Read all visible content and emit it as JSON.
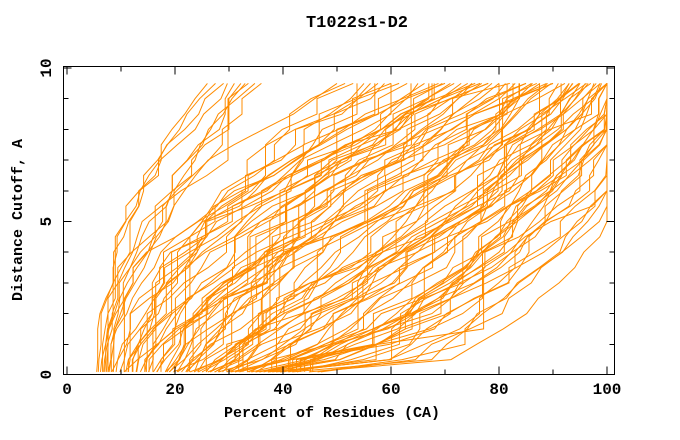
{
  "chart_data": {
    "type": "line",
    "title": "T1022s1-D2",
    "xlabel": "Percent of Residues (CA)",
    "ylabel": "Distance Cutoff, A",
    "xlim": [
      0,
      100
    ],
    "ylim": [
      0,
      10
    ],
    "x_major_ticks": [
      0,
      20,
      40,
      60,
      80,
      100
    ],
    "x_minor_ticks": [
      10,
      30,
      50,
      70,
      90
    ],
    "y_major_ticks": [
      0,
      5,
      10
    ],
    "y_minor_ticks": [
      1,
      2,
      3,
      4,
      6,
      7,
      8,
      9
    ],
    "grid": false,
    "legend": "none",
    "line_color": "#ff8c00",
    "axis_color": "#000000",
    "background_color": "#ffffff",
    "tick_style": "inward-all-four-sides",
    "y_tick_labels_rotated": true,
    "cutoff_levels": [
      0.1,
      0.5,
      1,
      1.5,
      2,
      2.5,
      3,
      3.5,
      4,
      4.5,
      5,
      5.5,
      6,
      6.5,
      7,
      7.5,
      8,
      8.5,
      9,
      9.5
    ],
    "curves_format": [
      "start_percent_at_min_cutoff",
      "end_percent_at_max_cutoff",
      "shape_exponent"
    ],
    "curves": [
      [
        5.5,
        26,
        1.79
      ],
      [
        6.2,
        29,
        1.69
      ],
      [
        7,
        31,
        1.75
      ],
      [
        7.8,
        33,
        1.66
      ],
      [
        8.6,
        36,
        1.73
      ],
      [
        5.8,
        27.5,
        1.78
      ],
      [
        7.3,
        32.2,
        1.71
      ],
      [
        8.2,
        34.8,
        1.8
      ],
      [
        6.6,
        29.7,
        1.68
      ],
      [
        7.6,
        33.6,
        1.76
      ],
      [
        6.8,
        50,
        1.66
      ],
      [
        8.3,
        53,
        1.56
      ],
      [
        9.8,
        55,
        1.62
      ],
      [
        11.3,
        57,
        1.53
      ],
      [
        12.8,
        60,
        1.6
      ],
      [
        7.6,
        51.5,
        1.65
      ],
      [
        10.6,
        56.2,
        1.58
      ],
      [
        12.2,
        58.8,
        1.67
      ],
      [
        9.1,
        53.7,
        1.55
      ],
      [
        10.9,
        57.6,
        1.63
      ],
      [
        10.6,
        60,
        1.52
      ],
      [
        12.1,
        63,
        1.42
      ],
      [
        13.6,
        65,
        1.48
      ],
      [
        15.1,
        67,
        1.39
      ],
      [
        16.6,
        70,
        1.46
      ],
      [
        11.4,
        61.5,
        1.51
      ],
      [
        14.4,
        66.2,
        1.44
      ],
      [
        16,
        68.8,
        1.53
      ],
      [
        12.9,
        63.7,
        1.41
      ],
      [
        14.7,
        67.6,
        1.49
      ],
      [
        14.4,
        68,
        1.39
      ],
      [
        15.9,
        71,
        1.29
      ],
      [
        17.4,
        73,
        1.35
      ],
      [
        18.9,
        75,
        1.26
      ],
      [
        20.4,
        78,
        1.33
      ],
      [
        15.2,
        69.5,
        1.38
      ],
      [
        18.2,
        74.2,
        1.31
      ],
      [
        19.8,
        76.8,
        1.4
      ],
      [
        16.7,
        71.7,
        1.28
      ],
      [
        18.5,
        75.6,
        1.36
      ],
      [
        18.2,
        75,
        1.25
      ],
      [
        19.7,
        78,
        1.15
      ],
      [
        21.2,
        80,
        1.21
      ],
      [
        22.7,
        82,
        1.12
      ],
      [
        24.2,
        85,
        1.19
      ],
      [
        19,
        76.5,
        1.24
      ],
      [
        22,
        81.2,
        1.17
      ],
      [
        23.6,
        83.8,
        1.26
      ],
      [
        20.5,
        78.7,
        1.14
      ],
      [
        22.3,
        82.6,
        1.22
      ],
      [
        22,
        80,
        1.12
      ],
      [
        23.5,
        83,
        1.02
      ],
      [
        25,
        85,
        1.08
      ],
      [
        26.5,
        87,
        0.99
      ],
      [
        28,
        90,
        1.06
      ],
      [
        22.8,
        81.5,
        1.11
      ],
      [
        25.8,
        86.2,
        1.04
      ],
      [
        27.4,
        88.8,
        1.13
      ],
      [
        24.3,
        83.7,
        1.01
      ],
      [
        26.1,
        87.6,
        1.09
      ],
      [
        25.8,
        86,
        0.98
      ],
      [
        27.3,
        89,
        0.88
      ],
      [
        28.8,
        91,
        0.94
      ],
      [
        30.3,
        93,
        0.85
      ],
      [
        31.8,
        96,
        0.92
      ],
      [
        26.6,
        87.5,
        0.97
      ],
      [
        29.6,
        92.2,
        0.9
      ],
      [
        31.2,
        94.8,
        0.99
      ],
      [
        28.1,
        89.7,
        0.87
      ],
      [
        29.9,
        93.6,
        0.95
      ],
      [
        29.6,
        90,
        0.85
      ],
      [
        31.1,
        93,
        0.75
      ],
      [
        32.6,
        95,
        0.81
      ],
      [
        34.1,
        97,
        0.72
      ],
      [
        35.6,
        100,
        0.79
      ],
      [
        30.4,
        91.5,
        0.84
      ],
      [
        33.4,
        96.2,
        0.77
      ],
      [
        35,
        98.8,
        0.86
      ],
      [
        31.9,
        93.7,
        0.74
      ],
      [
        33.7,
        97.6,
        0.82
      ],
      [
        33.4,
        95,
        0.71
      ],
      [
        34.9,
        98,
        0.61
      ],
      [
        36.4,
        100,
        0.67
      ],
      [
        37.9,
        102,
        0.58
      ],
      [
        39.4,
        105,
        0.65
      ],
      [
        34.2,
        96.5,
        0.7
      ],
      [
        37.2,
        101.2,
        0.63
      ],
      [
        38.8,
        103.8,
        0.72
      ],
      [
        35.7,
        98.7,
        0.6
      ],
      [
        37.5,
        102.6,
        0.68
      ],
      [
        37.2,
        99,
        0.58
      ],
      [
        38.7,
        102,
        0.48
      ],
      [
        40.2,
        104,
        0.54
      ],
      [
        41.7,
        106,
        0.45
      ],
      [
        43.2,
        109,
        0.52
      ],
      [
        38,
        100.5,
        0.57
      ],
      [
        41,
        105.2,
        0.5
      ],
      [
        42.6,
        107.8,
        0.59
      ],
      [
        39.5,
        102.7,
        0.46
      ],
      [
        41.3,
        106.6,
        0.55
      ],
      [
        41,
        103,
        0.44
      ],
      [
        42.5,
        106,
        0.34
      ],
      [
        44,
        108,
        0.4
      ],
      [
        45.5,
        110,
        0.31
      ],
      [
        47,
        113,
        0.38
      ],
      [
        41.8,
        104.5,
        0.43
      ],
      [
        44.8,
        109.2,
        0.36
      ],
      [
        46.4,
        111.8,
        0.45
      ],
      [
        43.3,
        106.7,
        0.32
      ],
      [
        45.1,
        110.6,
        0.41
      ]
    ]
  }
}
